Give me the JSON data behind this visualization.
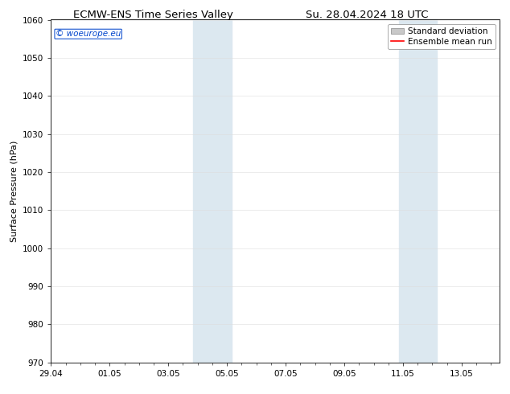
{
  "title_left": "ECMW-ENS Time Series Valley",
  "title_right": "Su. 28.04.2024 18 UTC",
  "ylabel": "Surface Pressure (hPa)",
  "ylim": [
    970,
    1060
  ],
  "yticks": [
    970,
    980,
    990,
    1000,
    1010,
    1020,
    1030,
    1040,
    1050,
    1060
  ],
  "xtick_labels": [
    "29.04",
    "01.05",
    "03.05",
    "05.05",
    "07.05",
    "09.05",
    "11.05",
    "13.05"
  ],
  "xtick_positions": [
    0,
    2,
    4,
    6,
    8,
    10,
    12,
    14
  ],
  "xlim": [
    0,
    15.3
  ],
  "shaded_regions": [
    {
      "x_start": 4.0,
      "x_end": 4.7
    },
    {
      "x_start": 4.7,
      "x_end": 6.2
    },
    {
      "x_start": 11.0,
      "x_end": 11.7
    },
    {
      "x_start": 11.7,
      "x_end": 13.2
    }
  ],
  "shaded_color": "#dce8f0",
  "background_color": "#ffffff",
  "legend_std_dev_color": "#c8c8c8",
  "legend_mean_color": "#ff0000",
  "watermark_text": "© woeurope.eu",
  "watermark_color": "#0044cc",
  "grid_color": "#dddddd",
  "title_fontsize": 9.5,
  "axis_label_fontsize": 8,
  "tick_fontsize": 7.5,
  "legend_fontsize": 7.5
}
